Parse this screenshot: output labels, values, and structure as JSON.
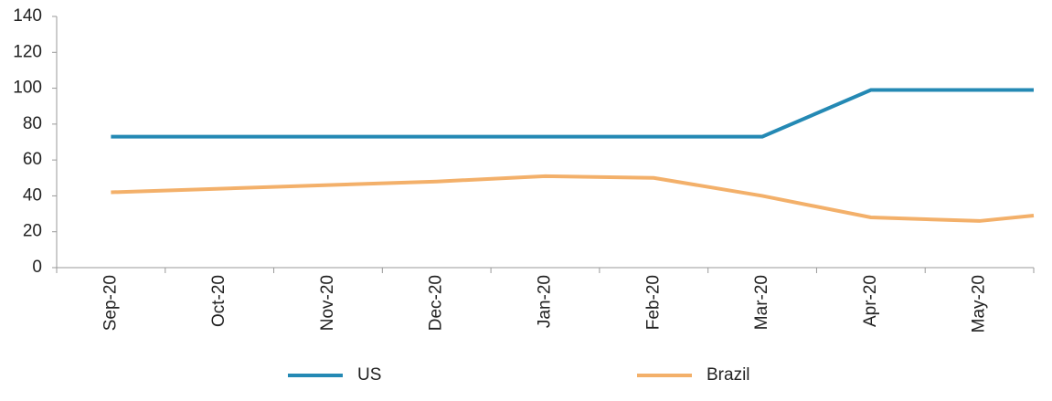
{
  "chart_data": {
    "type": "line",
    "categories": [
      "Sep-20",
      "Oct-20",
      "Nov-20",
      "Dec-20",
      "Jan-20",
      "Feb-20",
      "Mar-20",
      "Apr-20",
      "May-20",
      null
    ],
    "series": [
      {
        "name": "US",
        "color": "#2489b4",
        "values": [
          73,
          73,
          73,
          73,
          73,
          73,
          73,
          99,
          99,
          99
        ]
      },
      {
        "name": "Brazil",
        "color": "#f3b06a",
        "values": [
          42,
          44,
          46,
          48,
          51,
          50,
          40,
          28,
          26,
          29
        ]
      }
    ],
    "ylim": [
      0,
      140
    ],
    "yticks": [
      0,
      20,
      40,
      60,
      80,
      100,
      120,
      140
    ],
    "legend": "bottom"
  }
}
